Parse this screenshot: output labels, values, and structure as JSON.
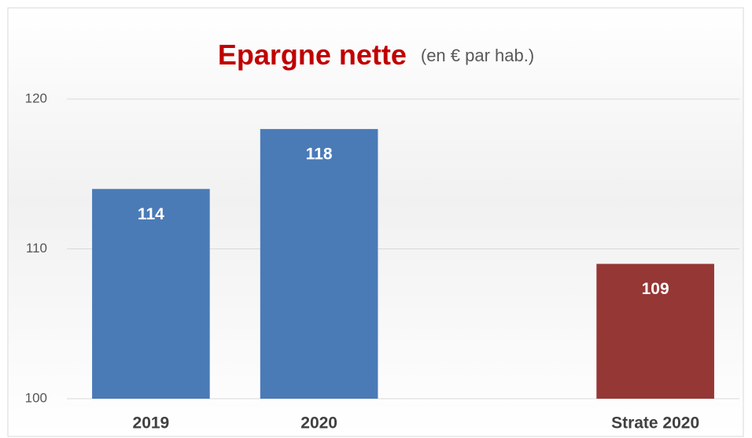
{
  "chart_data": {
    "type": "bar",
    "title": "Epargne nette",
    "subtitle": "(en € par hab.)",
    "categories": [
      "2019",
      "2020",
      null,
      "Strate 2020"
    ],
    "values": [
      114,
      118,
      null,
      109
    ],
    "colors": [
      "#4a7bb7",
      "#4a7bb7",
      null,
      "#953735"
    ],
    "ylim": [
      100,
      120
    ],
    "yticks": [
      100,
      110,
      120
    ],
    "grid": true
  }
}
